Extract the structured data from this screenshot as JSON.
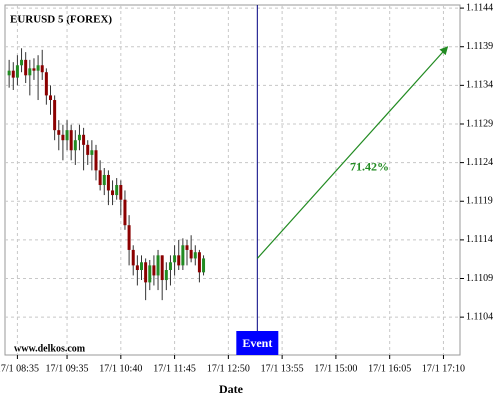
{
  "chart_data": {
    "type": "candlestick",
    "title": "EURUSD 5 (FOREX)",
    "watermark": "www.delkos.com",
    "x_label": "Date",
    "x": [
      -2,
      -1,
      0,
      1,
      2,
      3,
      4,
      5,
      6,
      7,
      8,
      9,
      10,
      11,
      12,
      13,
      14,
      15,
      16,
      17,
      18,
      19,
      20,
      21,
      22,
      23,
      24,
      25,
      26,
      27,
      28,
      29,
      30,
      31,
      32,
      33,
      34,
      35,
      36,
      37,
      38,
      39,
      40,
      41,
      42,
      43,
      44,
      45
    ],
    "open": [
      1.11353,
      1.11359,
      1.1135,
      1.11366,
      1.11373,
      1.11353,
      1.11362,
      1.11359,
      1.11366,
      1.11357,
      1.11327,
      1.11321,
      1.11282,
      1.11276,
      1.11269,
      1.11282,
      1.11256,
      1.11269,
      1.11276,
      1.11263,
      1.1125,
      1.11256,
      1.1123,
      1.11211,
      1.11224,
      1.11204,
      1.11198,
      1.11211,
      1.11192,
      1.11159,
      1.11127,
      1.11107,
      1.11101,
      1.11111,
      1.11085,
      1.11107,
      1.11094,
      1.1112,
      1.11088,
      1.11101,
      1.11111,
      1.1112,
      1.11107,
      1.11133,
      1.11127,
      1.11116,
      1.11124,
      1.11098
    ],
    "high": [
      1.11373,
      1.1137,
      1.11379,
      1.11388,
      1.11383,
      1.11373,
      1.11375,
      1.11379,
      1.11386,
      1.11362,
      1.1134,
      1.11327,
      1.11295,
      1.11289,
      1.11295,
      1.11289,
      1.11282,
      1.11289,
      1.11285,
      1.11269,
      1.11269,
      1.11263,
      1.11243,
      1.11233,
      1.1123,
      1.11217,
      1.1122,
      1.11217,
      1.11204,
      1.11172,
      1.11133,
      1.1112,
      1.1112,
      1.11116,
      1.11114,
      1.1112,
      1.11127,
      1.1112,
      1.11111,
      1.1112,
      1.11133,
      1.1114,
      1.11142,
      1.1114,
      1.11146,
      1.11133,
      1.11127,
      1.1112
    ],
    "low": [
      1.11337,
      1.11334,
      1.1134,
      1.11357,
      1.11343,
      1.11327,
      1.11347,
      1.11321,
      1.11347,
      1.11315,
      1.11302,
      1.11269,
      1.11256,
      1.11243,
      1.11256,
      1.11243,
      1.11237,
      1.11256,
      1.1123,
      1.11237,
      1.1123,
      1.11217,
      1.11204,
      1.11198,
      1.11185,
      1.11185,
      1.11192,
      1.11172,
      1.11153,
      1.11107,
      1.11094,
      1.11081,
      1.11088,
      1.11062,
      1.11075,
      1.11081,
      1.11075,
      1.11062,
      1.11075,
      1.11081,
      1.11094,
      1.11101,
      1.11101,
      1.11107,
      1.11111,
      1.11107,
      1.11085,
      1.11094
    ],
    "close": [
      1.11359,
      1.1135,
      1.11366,
      1.11373,
      1.11353,
      1.11362,
      1.11359,
      1.11366,
      1.11357,
      1.11327,
      1.11321,
      1.11282,
      1.11276,
      1.11269,
      1.11282,
      1.11256,
      1.11269,
      1.11276,
      1.11263,
      1.1125,
      1.11256,
      1.1123,
      1.11211,
      1.11224,
      1.11204,
      1.11198,
      1.11211,
      1.11192,
      1.11159,
      1.11127,
      1.11107,
      1.11101,
      1.11111,
      1.11085,
      1.11107,
      1.11094,
      1.1112,
      1.11088,
      1.11101,
      1.11111,
      1.1112,
      1.11107,
      1.11133,
      1.11127,
      1.11116,
      1.11124,
      1.11098,
      1.11116
    ],
    "up_color": "#228b22",
    "down_color": "#8b0000",
    "xlim": [
      -3,
      107
    ],
    "xticks": [
      {
        "value": 0,
        "label": "17/1 08:35"
      },
      {
        "value": 12,
        "label": "17/1 09:35"
      },
      {
        "value": 25,
        "label": "17/1 10:40"
      },
      {
        "value": 38,
        "label": "17/1 11:45"
      },
      {
        "value": 51,
        "label": "17/1 12:50"
      },
      {
        "value": 64,
        "label": "17/1 13:55"
      },
      {
        "value": 77,
        "label": "17/1 15:00"
      },
      {
        "value": 90,
        "label": "17/1 16:05"
      },
      {
        "value": 103,
        "label": "17/1 17:10"
      }
    ],
    "ylim": [
      1.10991,
      1.11444
    ],
    "yticks": [
      1.1104,
      1.1109,
      1.1114,
      1.1119,
      1.1124,
      1.1129,
      1.1134,
      1.1139,
      1.1144
    ],
    "grid": true,
    "event": {
      "label": "Event",
      "x": 58,
      "color": "#0000ff"
    },
    "projection": {
      "x": [
        58,
        104
      ],
      "y": [
        1.11116,
        1.1139
      ],
      "label": "71.42%",
      "color": "#228b22"
    }
  }
}
